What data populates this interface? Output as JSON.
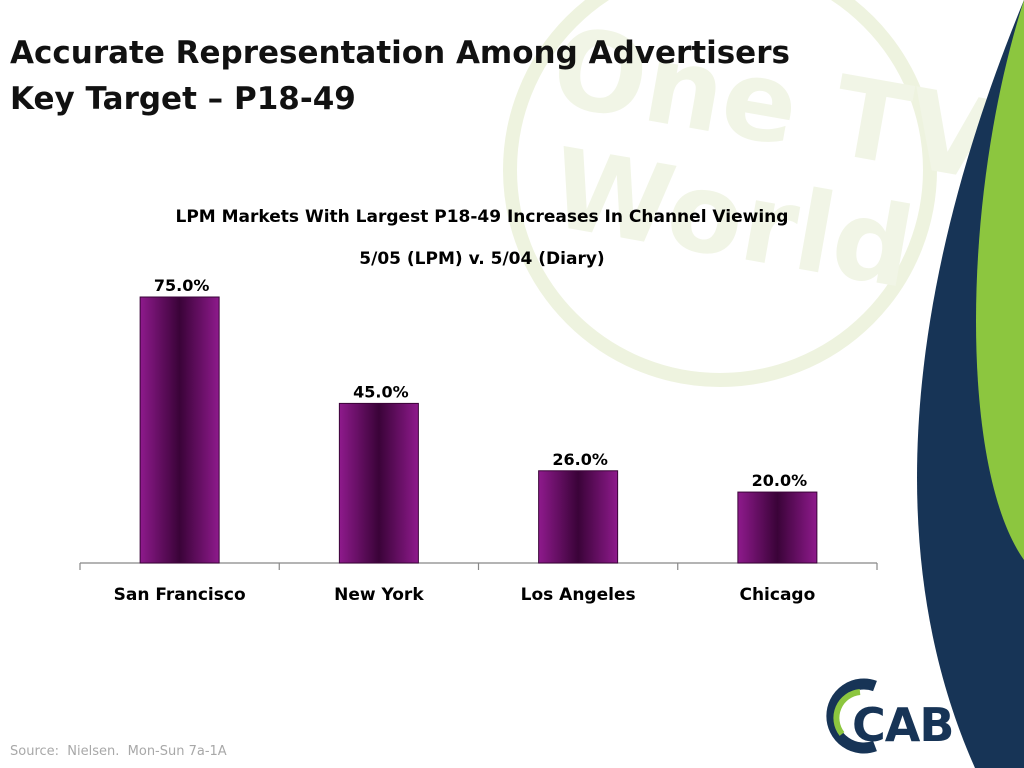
{
  "slide": {
    "title_line1": "Accurate Representation Among Advertisers",
    "title_line2": "Key Target – P18-49",
    "source": "Source:  Nielsen.  Mon-Sun 7a-1A",
    "logo_text": "CAB",
    "watermark_text": [
      "One TV",
      "World"
    ]
  },
  "colors": {
    "bar": "#7a1078",
    "bar_dark": "#3a0338",
    "green": "#8cc63f",
    "navy": "#173456"
  },
  "chart_data": {
    "type": "bar",
    "title": "LPM Markets With Largest P18-49 Increases In Channel Viewing",
    "subtitle": "5/05 (LPM) v. 5/04 (Diary)",
    "categories": [
      "San Francisco",
      "New York",
      "Los Angeles",
      "Chicago"
    ],
    "values": [
      75,
      45,
      26,
      20
    ],
    "data_labels": [
      "75.0%",
      "45.0%",
      "26.0%",
      "20.0%"
    ],
    "unit": "%",
    "ylim": [
      0,
      75
    ],
    "grid": false,
    "legend": "none"
  }
}
